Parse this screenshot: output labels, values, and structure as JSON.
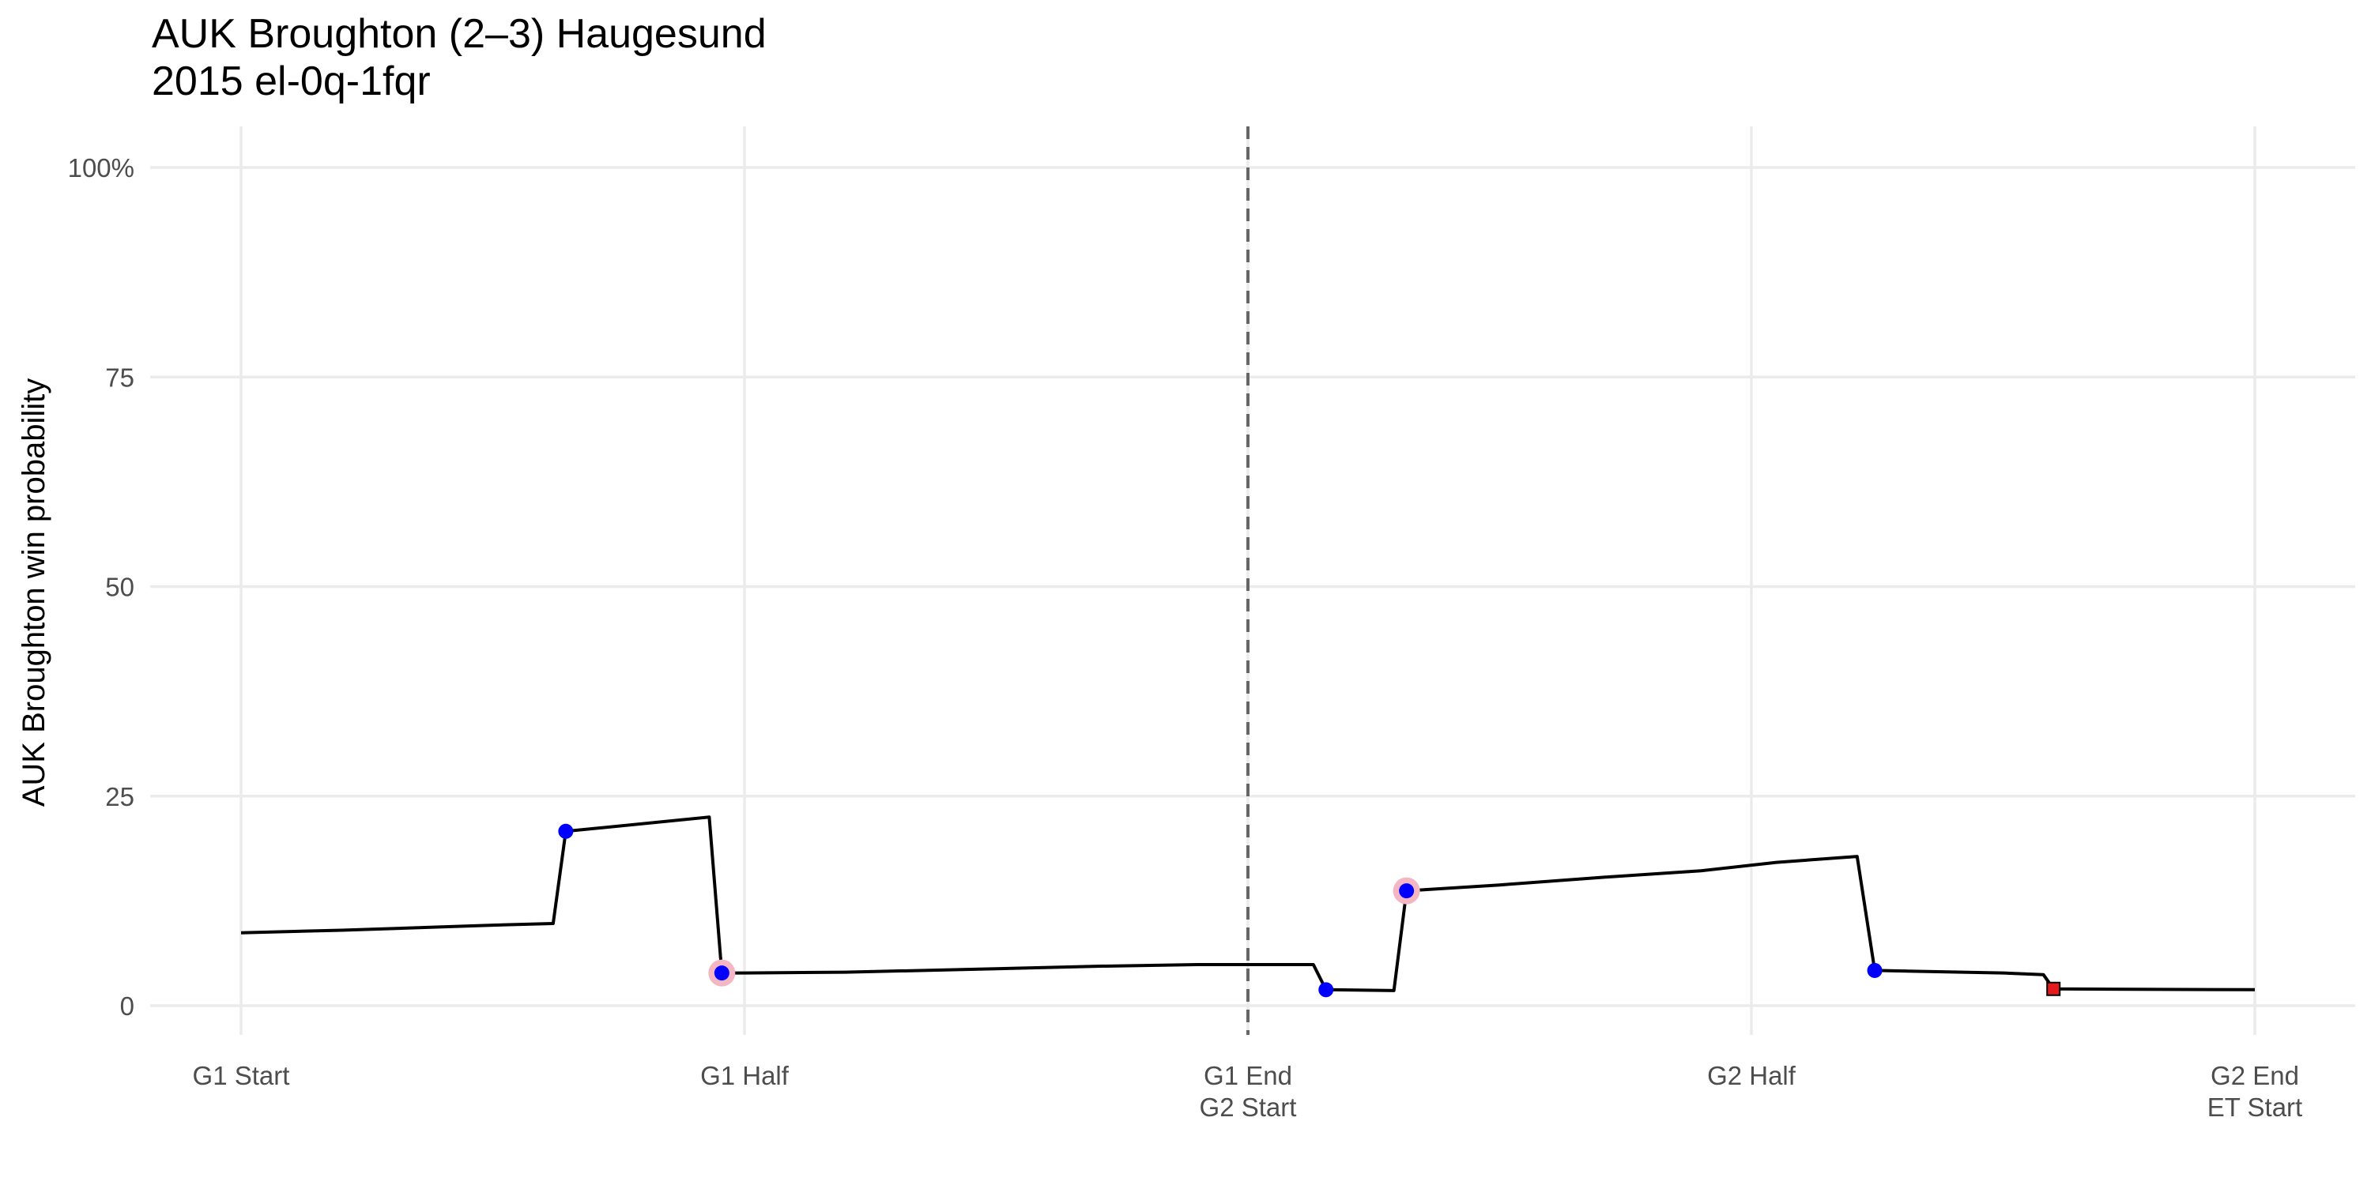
{
  "chart_data": {
    "type": "line",
    "title": "AUK Broughton (2–3) Haugesund",
    "subtitle": "2015 el-0q-1fqr",
    "xlabel": "",
    "ylabel": "AUK Broughton win probability",
    "ylim": [
      0,
      100
    ],
    "y_ticks": [
      {
        "value": 0,
        "label": "0"
      },
      {
        "value": 25,
        "label": "25"
      },
      {
        "value": 50,
        "label": "50"
      },
      {
        "value": 75,
        "label": "75"
      },
      {
        "value": 100,
        "label": "100%"
      }
    ],
    "x_range": [
      -0.08,
      4.2
    ],
    "x_ticks": [
      {
        "value": 0,
        "lines": [
          "G1 Start"
        ]
      },
      {
        "value": 1,
        "lines": [
          "G1 Half"
        ]
      },
      {
        "value": 2,
        "lines": [
          "G1 End",
          "G2 Start"
        ]
      },
      {
        "value": 3,
        "lines": [
          "G2 Half"
        ]
      },
      {
        "value": 4,
        "lines": [
          "G2 End",
          "ET Start"
        ]
      }
    ],
    "vline": {
      "x": 2,
      "style": "dashed"
    },
    "grid": true,
    "series": [
      {
        "x": [
          0,
          0.2,
          0.4,
          0.5,
          0.62,
          0.645,
          0.93,
          0.955,
          1.0,
          1.2,
          1.5,
          1.7,
          1.9,
          2.13,
          2.155,
          2.29,
          2.315,
          2.5,
          2.7,
          2.9,
          3.05,
          3.21,
          3.245,
          3.5,
          3.58,
          3.6,
          4.0
        ],
        "y": [
          8.7,
          9.0,
          9.4,
          9.6,
          9.8,
          20.8,
          22.5,
          3.9,
          3.9,
          4.0,
          4.4,
          4.7,
          4.9,
          4.9,
          1.9,
          1.8,
          13.7,
          14.4,
          15.3,
          16.1,
          17.1,
          17.8,
          4.2,
          3.9,
          3.7,
          2.0,
          1.9
        ],
        "color": "#000000"
      }
    ],
    "events": [
      {
        "x": 0.645,
        "y": 20.8,
        "marker": "circle",
        "color": "#0000ff",
        "halo": false
      },
      {
        "x": 0.955,
        "y": 3.9,
        "marker": "circle",
        "color": "#0000ff",
        "halo": true
      },
      {
        "x": 2.155,
        "y": 1.9,
        "marker": "circle",
        "color": "#0000ff",
        "halo": false
      },
      {
        "x": 2.315,
        "y": 13.7,
        "marker": "circle",
        "color": "#0000ff",
        "halo": true
      },
      {
        "x": 3.245,
        "y": 4.2,
        "marker": "circle",
        "color": "#0000ff",
        "halo": false
      },
      {
        "x": 3.6,
        "y": 2.0,
        "marker": "square",
        "color": "#e41a1c",
        "halo": false
      }
    ],
    "colors": {
      "halo": "#f4b6c2",
      "vline": "#666666",
      "grid": "#ebebeb"
    }
  }
}
